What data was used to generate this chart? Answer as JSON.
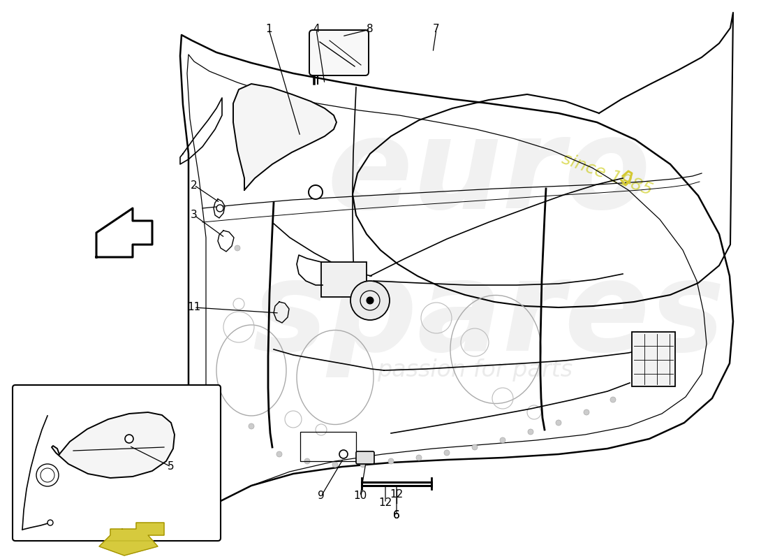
{
  "background_color": "#ffffff",
  "line_color": "#000000",
  "accent_color": "#d4c832",
  "figsize": [
    11.0,
    8.0
  ],
  "dpi": 100,
  "watermark_text1": "euro",
  "watermark_text2": "spares",
  "watermark_text3": "passion for parts",
  "watermark_text4": "since 1985"
}
